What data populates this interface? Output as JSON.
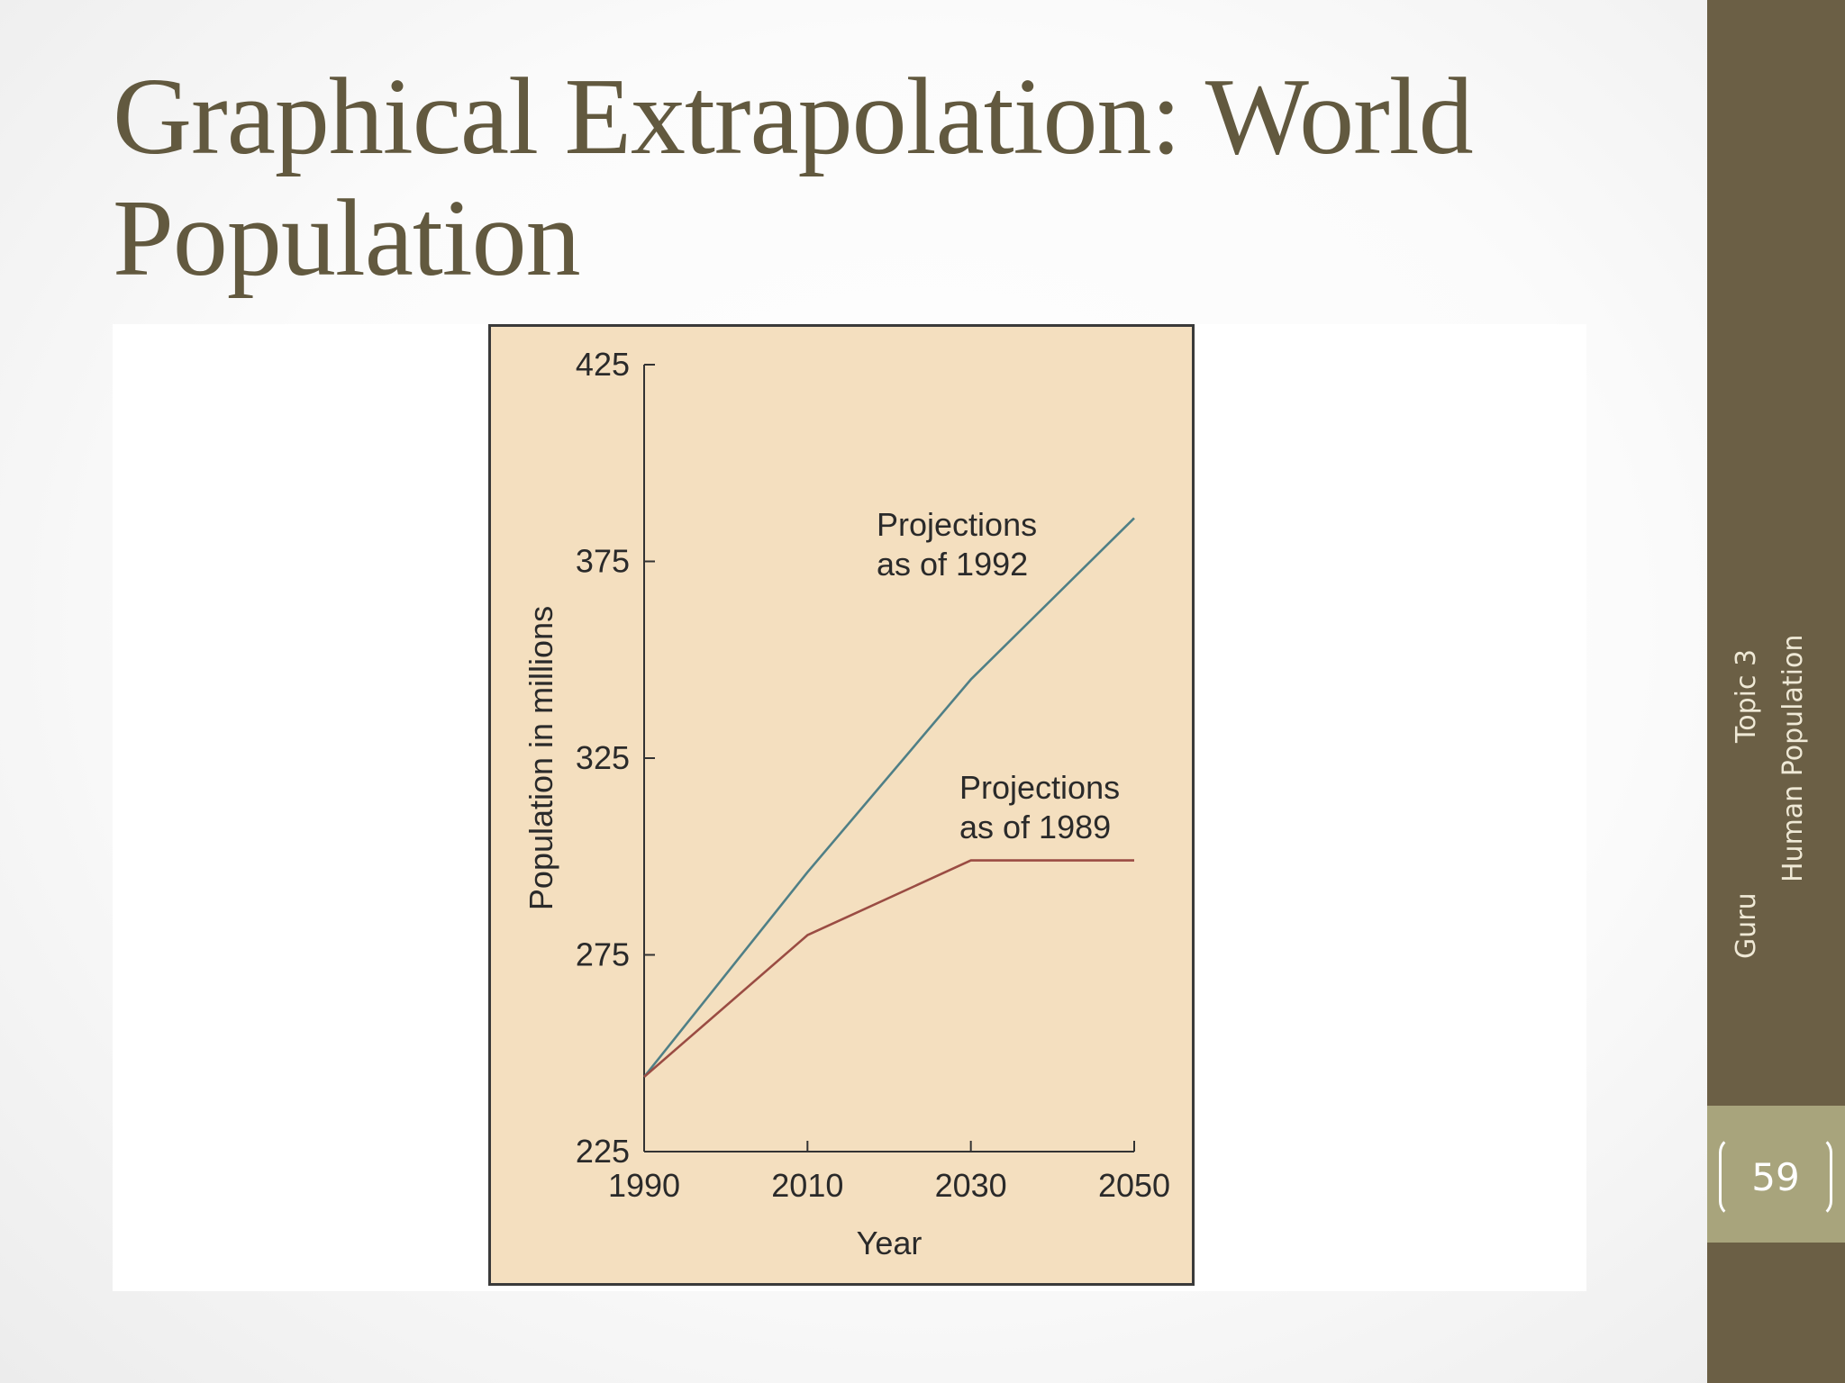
{
  "slide": {
    "title": "Graphical Extrapolation:  World Population",
    "page_number": "59",
    "sidebar": {
      "footer": "Guru",
      "topic": "Topic 3",
      "subtitle": "Human Population"
    }
  },
  "colors": {
    "title": "#62593f",
    "sidebar": "#6b5f45",
    "page_box": "#a8a47c",
    "chart_bg": "#f4dfbf",
    "series_1992": "#4f7f86",
    "series_1989": "#9a4c43"
  },
  "chart_data": {
    "type": "line",
    "title": "",
    "xlabel": "Year",
    "ylabel": "Population in millions",
    "xlim": [
      1990,
      2050
    ],
    "ylim": [
      225,
      425
    ],
    "xticks": [
      1990,
      2010,
      2030,
      2050
    ],
    "yticks": [
      225,
      275,
      325,
      375,
      425
    ],
    "grid": false,
    "series": [
      {
        "name": "Projections as of 1992",
        "label_lines": [
          "Projections",
          "as of 1992"
        ],
        "color": "#4f7f86",
        "x": [
          1990,
          2010,
          2030,
          2050
        ],
        "y": [
          244,
          296,
          345,
          386
        ]
      },
      {
        "name": "Projections as of 1989",
        "label_lines": [
          "Projections",
          "as of 1989"
        ],
        "color": "#9a4c43",
        "x": [
          1990,
          2010,
          2030,
          2050
        ],
        "y": [
          244,
          280,
          299,
          299
        ]
      }
    ]
  }
}
